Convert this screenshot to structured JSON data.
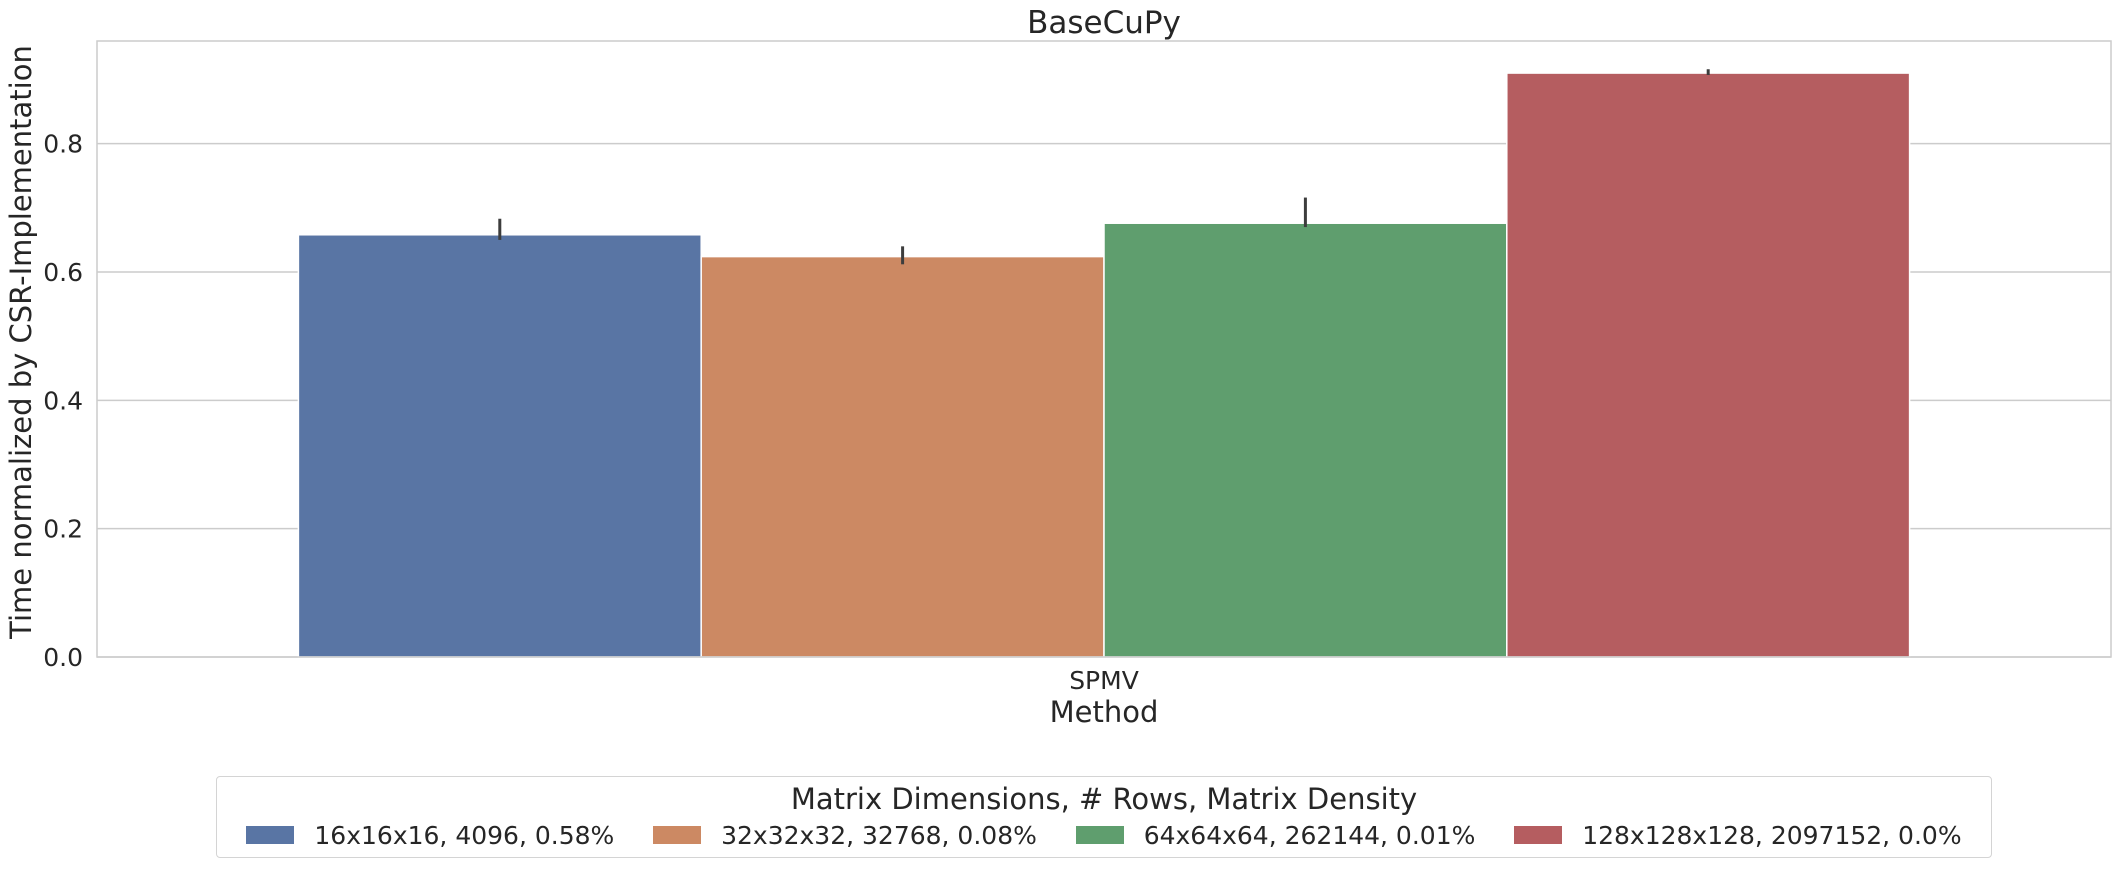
{
  "chart_data": {
    "type": "bar",
    "title": "BaseCuPy",
    "xlabel": "Method",
    "ylabel": "Time normalized by CSR-Implementation",
    "categories": [
      "SPMV"
    ],
    "ylim": [
      0,
      0.96
    ],
    "yticks": [
      "0.0",
      "0.2",
      "0.4",
      "0.6",
      "0.8"
    ],
    "grid": true,
    "legend": {
      "title": "Matrix Dimensions, # Rows, Matrix Density",
      "placement": "bottom-outside"
    },
    "series": [
      {
        "name": "16x16x16, 4096, 0.58%",
        "values": [
          0.658
        ],
        "error": [
          [
            0.65,
            0.683
          ]
        ],
        "color": "#5975a4"
      },
      {
        "name": "32x32x32, 32768, 0.08%",
        "values": [
          0.624
        ],
        "error": [
          [
            0.612,
            0.64
          ]
        ],
        "color": "#cc8963"
      },
      {
        "name": "64x64x64, 262144, 0.01%",
        "values": [
          0.676
        ],
        "error": [
          [
            0.67,
            0.716
          ]
        ],
        "color": "#5f9e6e"
      },
      {
        "name": "128x128x128, 2097152, 0.0%",
        "values": [
          0.91
        ],
        "error": [
          [
            0.907,
            0.916
          ]
        ],
        "color": "#b55d60"
      }
    ]
  }
}
